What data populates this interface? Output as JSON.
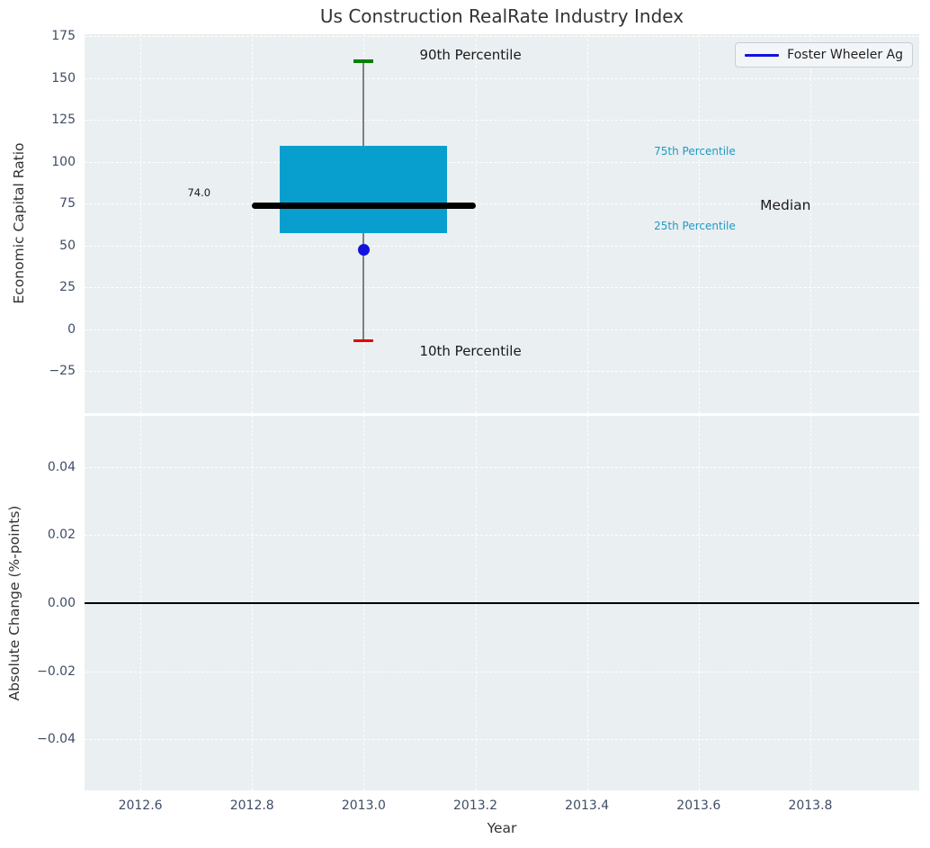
{
  "figure_title": "Us Construction RealRate Industry Index",
  "colors": {
    "box_fill": "#089fcf",
    "median_line": "#000000",
    "whisker_line": "#7f7f7f",
    "p90_cap": "#008000",
    "p10_cap": "#e60000",
    "company_marker": "#1212dd",
    "percentile_label": "#1f9ac6",
    "annotation_text": "#1a1a1a",
    "axes_background": "#eaeff1",
    "grid": "#ffffff",
    "tick_label": "#3e4d66",
    "zero_line": "#000000"
  },
  "chart_data": [
    {
      "type": "box",
      "title": "Us Construction RealRate Industry Index",
      "ylabel": "Economic Capital Ratio",
      "xlim": [
        2012.5,
        2013.995
      ],
      "ylim": [
        -50.2,
        176.3
      ],
      "grid": true,
      "legend_position": "upper right",
      "legend": {
        "label": "Foster Wheeler Ag"
      },
      "yticks": [
        {
          "v": 175,
          "label": "175"
        },
        {
          "v": 150,
          "label": "150"
        },
        {
          "v": 125,
          "label": "125"
        },
        {
          "v": 100,
          "label": "100"
        },
        {
          "v": 75,
          "label": "75"
        },
        {
          "v": 50,
          "label": "50"
        },
        {
          "v": 25,
          "label": "25"
        },
        {
          "v": 0,
          "label": "0"
        },
        {
          "v": -25,
          "label": "−25"
        }
      ],
      "xgrid": [
        2012.6,
        2012.8,
        2013.0,
        2013.2,
        2013.4,
        2013.6,
        2013.8
      ],
      "box": {
        "x": 2013.0,
        "box_x_range": [
          2012.85,
          2013.15
        ],
        "median_x_range": [
          2012.8,
          2013.2
        ],
        "p10": -7,
        "p25": 57.5,
        "median": 74.0,
        "p75": 109.5,
        "p90": 160,
        "median_label": "74.0"
      },
      "series": [
        {
          "name": "Foster Wheeler Ag",
          "x": 2013.0,
          "y": 47.6,
          "marker": "circle"
        }
      ],
      "annotations": [
        {
          "text": "90th Percentile",
          "x": 2013.1,
          "y": 164,
          "ha": "left",
          "size": 15,
          "color": "#1a1a1a"
        },
        {
          "text": "10th Percentile",
          "x": 2013.1,
          "y": -13,
          "ha": "left",
          "size": 15,
          "color": "#1a1a1a"
        },
        {
          "text": "75th Percentile",
          "x": 2013.52,
          "y": 106.5,
          "ha": "left",
          "size": 12,
          "color": "#1f9ac6"
        },
        {
          "text": "25th Percentile",
          "x": 2013.52,
          "y": 61.7,
          "ha": "left",
          "size": 12,
          "color": "#1f9ac6"
        },
        {
          "text": "Median",
          "x": 2013.71,
          "y": 74,
          "ha": "left",
          "size": 15.5,
          "color": "#1a1a1a"
        },
        {
          "text": "74.0",
          "x": 2012.705,
          "y": 81.6,
          "ha": "center",
          "size": 11.5,
          "color": "#1a1a1a"
        }
      ]
    },
    {
      "type": "line",
      "ylabel": "Absolute Change (%-points)",
      "xlabel": "Year",
      "xlim": [
        2012.5,
        2013.995
      ],
      "ylim": [
        -0.055,
        0.055
      ],
      "grid": true,
      "yticks": [
        {
          "v": 0.04,
          "label": "0.04"
        },
        {
          "v": 0.02,
          "label": "0.02"
        },
        {
          "v": 0,
          "label": "0.00"
        },
        {
          "v": -0.02,
          "label": "−0.02"
        },
        {
          "v": -0.04,
          "label": "−0.04"
        }
      ],
      "xticks": [
        {
          "v": 2012.6,
          "label": "2012.6"
        },
        {
          "v": 2012.8,
          "label": "2012.8"
        },
        {
          "v": 2013.0,
          "label": "2013.0"
        },
        {
          "v": 2013.2,
          "label": "2013.2"
        },
        {
          "v": 2013.4,
          "label": "2013.4"
        },
        {
          "v": 2013.6,
          "label": "2013.6"
        },
        {
          "v": 2013.8,
          "label": "2013.8"
        }
      ],
      "hline": {
        "y": 0.0
      },
      "series": []
    }
  ]
}
